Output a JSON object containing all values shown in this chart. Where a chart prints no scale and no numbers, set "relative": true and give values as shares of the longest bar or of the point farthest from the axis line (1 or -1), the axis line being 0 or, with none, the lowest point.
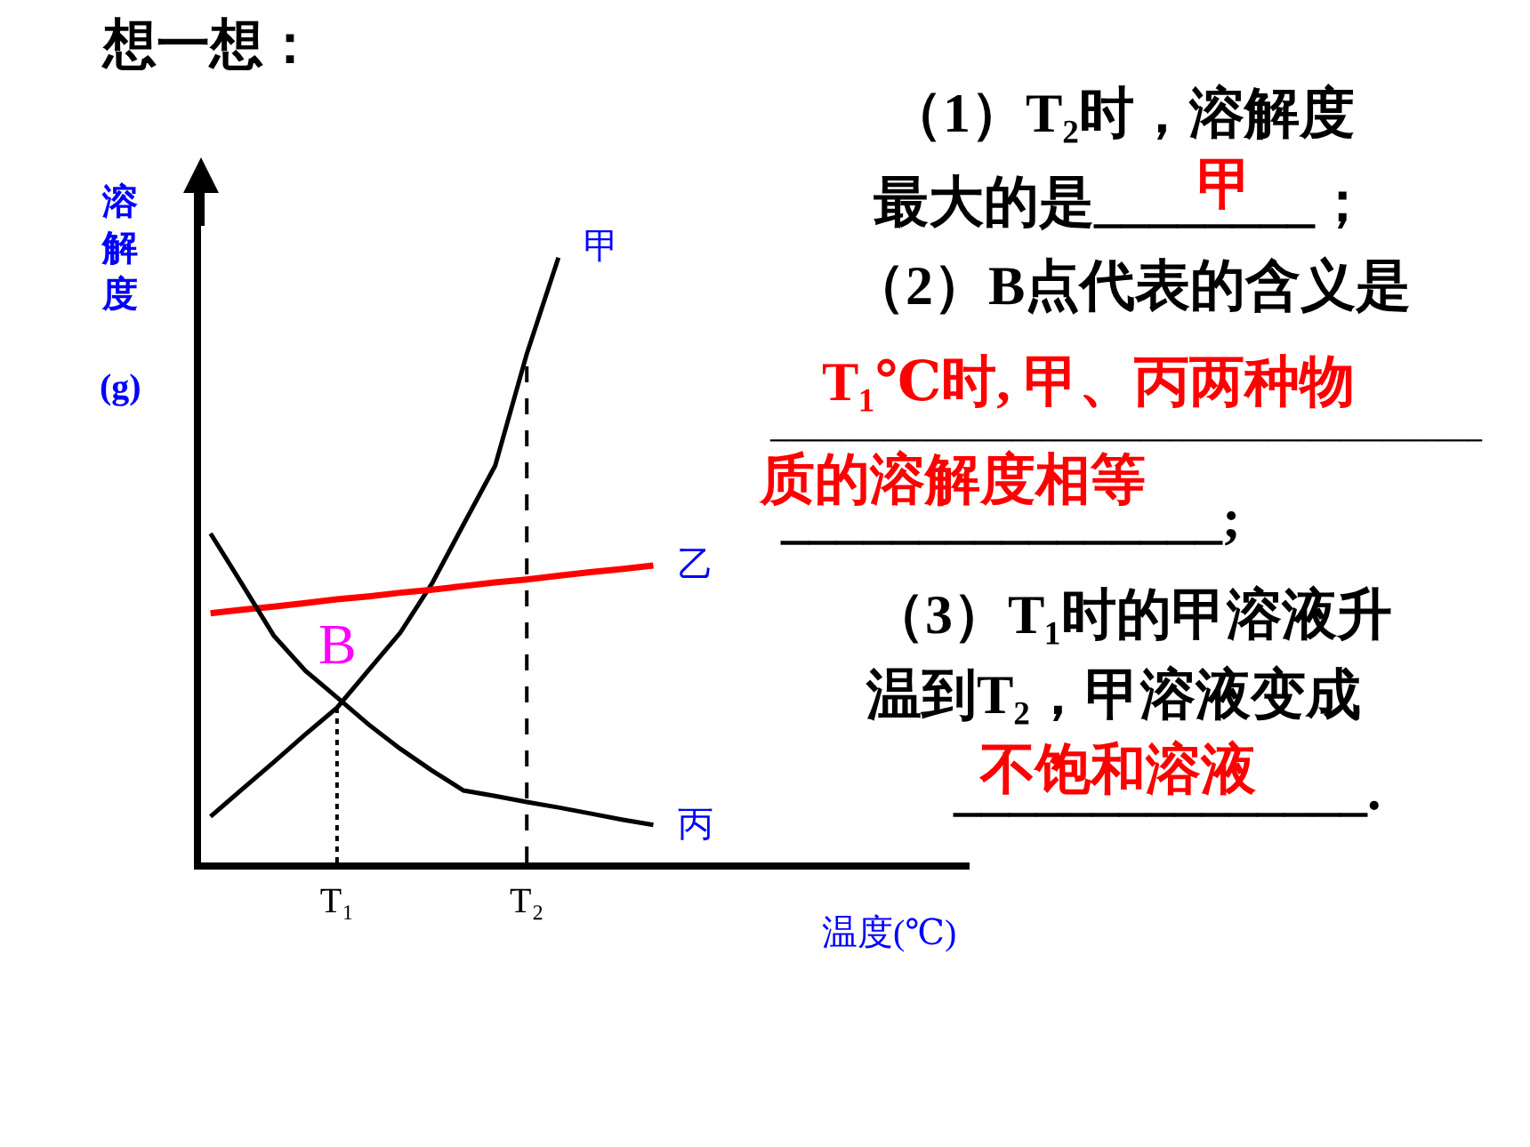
{
  "chart_data": {
    "type": "line",
    "relative": true,
    "title": "想一想：",
    "xlabel": "温度(℃)",
    "ylabel": "溶解度(g)",
    "categories": [
      null,
      null,
      null,
      null,
      "T₁",
      null,
      null,
      null,
      null,
      null,
      "T₂",
      null,
      null,
      null,
      null,
      null,
      null,
      null,
      null,
      null,
      null,
      null,
      null,
      null,
      null
    ],
    "series": [
      {
        "name": "甲",
        "color": "#000000",
        "values": [
          0.076,
          0.121,
          0.166,
          0.212,
          0.256,
          0.318,
          0.38,
          0.461,
          0.559,
          0.656,
          0.841,
          1.0,
          null,
          null,
          null,
          null,
          null,
          null,
          null,
          null,
          null,
          null,
          null,
          null,
          null
        ]
      },
      {
        "name": "乙",
        "color": "#ff0000",
        "values": [
          0.412,
          0.418,
          0.423,
          0.429,
          0.435,
          0.44,
          0.446,
          0.451,
          0.457,
          0.463,
          0.468,
          0.474,
          0.48,
          0.485,
          0.491,
          null,
          null,
          null,
          null,
          null,
          null,
          null,
          null,
          null,
          null
        ]
      },
      {
        "name": "丙",
        "color": "#000000",
        "values": [
          0.544,
          0.46,
          0.375,
          0.317,
          0.273,
          0.228,
          0.188,
          0.152,
          0.119,
          0.11,
          0.1,
          0.091,
          0.081,
          0.071,
          0.062,
          null,
          null,
          null,
          null,
          null,
          null,
          null,
          null,
          null,
          null
        ]
      }
    ],
    "ref_lines": [
      {
        "axis": "x",
        "value": "T₁",
        "line_style": "dotted"
      },
      {
        "axis": "x",
        "value": "T₂",
        "line_style": "dashed"
      }
    ],
    "annotations": [
      {
        "text": "B",
        "x": "T₁",
        "y": 0.256
      },
      "（1）T₂时，溶解度",
      "最大的是________；",
      "甲",
      "（2）B点代表的含义是",
      "T₁℃时, 甲、丙两种物",
      "__________________________________________________",
      "质的溶解度相等",
      "________________;",
      "（3）T₁时的甲溶液升",
      "温到T₂，甲溶液变成",
      "不饱和溶液",
      "_______________."
    ],
    "legend": false,
    "marker": "none",
    "line_style": "solid"
  }
}
